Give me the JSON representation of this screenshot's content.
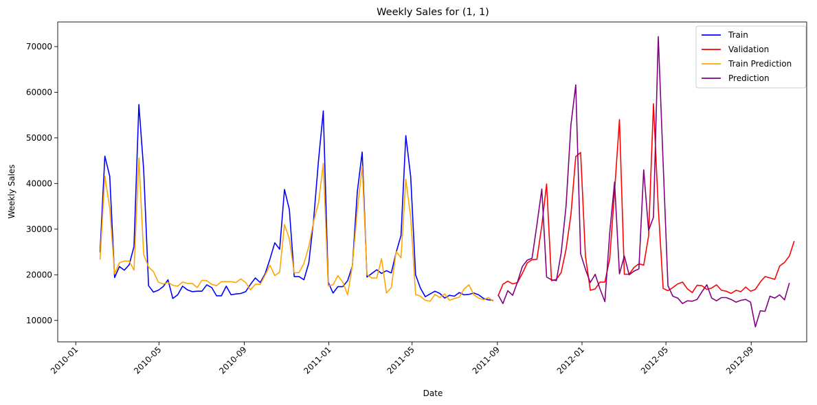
{
  "chart_data": {
    "type": "line",
    "title": "Weekly Sales for (1, 1)",
    "xlabel": "Date",
    "ylabel": "Weekly Sales",
    "x_range": [
      "2009-12-06",
      "2012-11-20"
    ],
    "ylim": [
      5300,
      75400
    ],
    "x_ticks": [
      "2010-01",
      "2010-05",
      "2010-09",
      "2011-01",
      "2011-05",
      "2011-09",
      "2012-01",
      "2012-05",
      "2012-09"
    ],
    "y_ticks": [
      10000,
      20000,
      30000,
      40000,
      50000,
      60000,
      70000
    ],
    "grid": false,
    "legend": "top-right",
    "series": [
      {
        "name": "Train",
        "color": "#0000ff",
        "start": "2010-02-05",
        "values": [
          24900,
          46000,
          41600,
          19400,
          21800,
          21000,
          22200,
          26200,
          57300,
          43000,
          17600,
          16200,
          16600,
          17400,
          18900,
          14800,
          15600,
          17500,
          16700,
          16300,
          16400,
          16400,
          17800,
          17200,
          15400,
          15400,
          17500,
          15600,
          15800,
          15900,
          16300,
          17900,
          19300,
          18300,
          20200,
          23400,
          27000,
          25600,
          38700,
          34300,
          19600,
          19600,
          18900,
          22600,
          32000,
          45000,
          55900,
          18400,
          16000,
          17400,
          17400,
          18700,
          22000,
          38200,
          46900,
          19500,
          20300,
          21100,
          20300,
          20900,
          20400,
          24900,
          28600,
          50500,
          41500,
          20000,
          17100,
          15200,
          15800,
          16400,
          15900,
          14900,
          15500,
          15300,
          16100,
          15600,
          15700,
          16000,
          15600,
          14800,
          14500,
          14400
        ]
      },
      {
        "name": "Validation",
        "color": "#ff0000",
        "start": "2011-09-02",
        "values": [
          15400,
          17900,
          18600,
          18000,
          18300,
          20300,
          22600,
          23300,
          23400,
          30800,
          39900,
          18700,
          19000,
          20500,
          25600,
          33200,
          45900,
          46800,
          24100,
          16600,
          16900,
          18400,
          18400,
          23600,
          38300,
          54000,
          20100,
          20100,
          21600,
          22400,
          22100,
          28500,
          57500,
          34700,
          17000,
          16500,
          17200,
          18000,
          18400,
          16900,
          16100,
          17700,
          17600,
          16800,
          17100,
          17800,
          16600,
          16400,
          15900,
          16600,
          16300,
          17300,
          16400,
          16800,
          18400,
          19600,
          19300,
          19000,
          21900,
          22700,
          24100,
          27400
        ]
      },
      {
        "name": "Train Prediction",
        "color": "#ffa500",
        "start": "2010-02-05",
        "values": [
          23300,
          41600,
          34600,
          20200,
          22600,
          23000,
          23000,
          21000,
          45600,
          24400,
          21700,
          20700,
          18400,
          18000,
          18300,
          17700,
          17500,
          18400,
          18100,
          18100,
          17200,
          18800,
          18700,
          17900,
          17600,
          18500,
          18500,
          18500,
          18300,
          19100,
          18300,
          16700,
          17900,
          17900,
          19900,
          22100,
          19800,
          20600,
          31000,
          27900,
          20400,
          20500,
          22500,
          26200,
          31700,
          35700,
          44400,
          17600,
          17800,
          19800,
          18400,
          15600,
          22100,
          34200,
          43800,
          20000,
          19300,
          19300,
          23500,
          16000,
          17200,
          25100,
          23700,
          40900,
          32600,
          15700,
          15300,
          14400,
          14200,
          15700,
          15000,
          15800,
          14400,
          14800,
          15100,
          16900,
          17800,
          15600,
          14900,
          14500,
          15000,
          14200
        ]
      },
      {
        "name": "Prediction",
        "color": "#800080",
        "start": "2011-09-02",
        "values": [
          15600,
          13700,
          16500,
          15500,
          18400,
          21800,
          23200,
          23600,
          31000,
          38800,
          19500,
          18900,
          18700,
          24800,
          35100,
          52900,
          61600,
          24600,
          21200,
          18300,
          20100,
          16900,
          14100,
          29300,
          40300,
          20200,
          24100,
          20000,
          20800,
          21300,
          43000,
          29700,
          32600,
          72200,
          44400,
          17600,
          15300,
          14900,
          13700,
          14300,
          14200,
          14600,
          16300,
          17800,
          14900,
          14300,
          15000,
          15000,
          14600,
          14000,
          14400,
          14600,
          14000,
          8600,
          12100,
          12000,
          15300,
          14900,
          15600,
          14500,
          18200
        ]
      }
    ]
  }
}
